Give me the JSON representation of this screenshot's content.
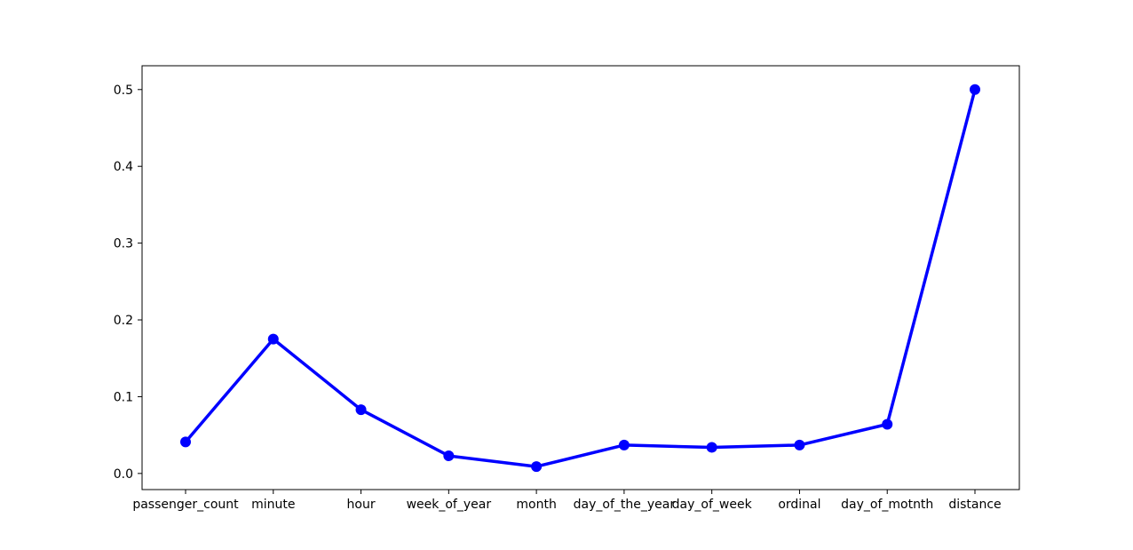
{
  "chart_data": {
    "type": "line",
    "title": "",
    "xlabel": "",
    "ylabel": "",
    "categories": [
      "passenger_count",
      "minute",
      "hour",
      "week_of_year",
      "month",
      "day_of_the_year",
      "day_of_week",
      "ordinal",
      "day_of_motnth",
      "distance"
    ],
    "series": [
      {
        "values": [
          0.041,
          0.175,
          0.083,
          0.023,
          0.009,
          0.037,
          0.034,
          0.037,
          0.064,
          0.5
        ]
      }
    ],
    "ylim": [
      -0.021,
      0.531
    ],
    "yticks": [
      "0.0",
      "0.1",
      "0.2",
      "0.3",
      "0.4",
      "0.5"
    ],
    "grid": false,
    "legend": "none",
    "colors": {
      "line": "#0000ff",
      "marker": "#0000ff",
      "axes": "#000000"
    }
  }
}
